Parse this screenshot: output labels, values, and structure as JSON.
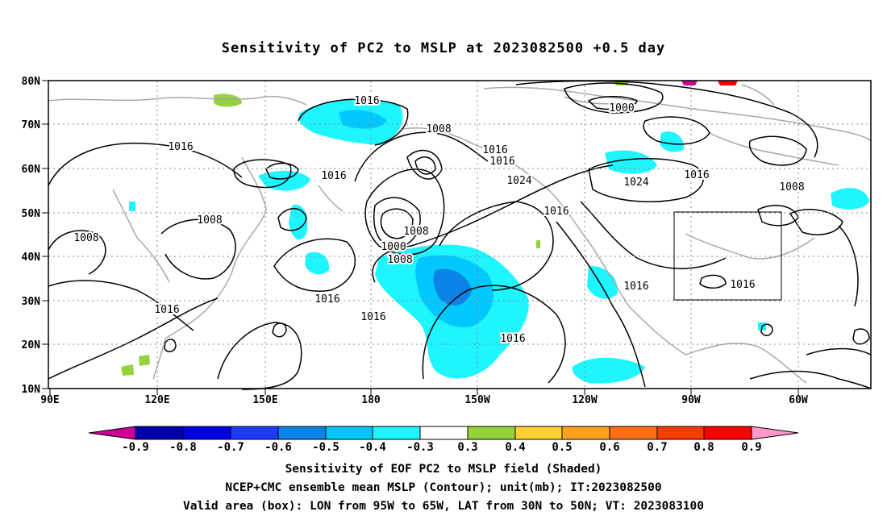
{
  "title": "Sensitivity of PC2 to MSLP at 2023082500 +0.5 day",
  "lat_labels": [
    "80N",
    "70N",
    "60N",
    "50N",
    "40N",
    "30N",
    "20N",
    "10N"
  ],
  "lon_labels": [
    "90E",
    "120E",
    "150E",
    "180",
    "150W",
    "120W",
    "90W",
    "60W"
  ],
  "contour_labels": [
    "1016",
    "1008",
    "1016",
    "1008",
    "1008",
    "1016",
    "1016",
    "1016",
    "1024",
    "1000",
    "1000",
    "1008",
    "1016",
    "1016",
    "1024",
    "1016",
    "1008",
    "1016",
    "1016",
    "1016",
    "1016",
    "1008",
    "1016"
  ],
  "colorbar": {
    "labels": [
      "-0.9",
      "-0.8",
      "-0.7",
      "-0.6",
      "-0.5",
      "-0.4",
      "-0.3",
      "0.3",
      "0.4",
      "0.5",
      "0.6",
      "0.7",
      "0.8",
      "0.9"
    ],
    "colors": [
      "#cc0099",
      "#0000a8",
      "#0000e0",
      "#1e3cff",
      "#0a82e6",
      "#00c8ff",
      "#1ef5ff",
      "#ffffff",
      "#96d23c",
      "#ffd232",
      "#ffa01e",
      "#ff6e14",
      "#ff3c00",
      "#ff0000",
      "#ff99cc"
    ]
  },
  "captions": [
    "Sensitivity of EOF PC2 to MSLP field (Shaded)",
    "NCEP+CMC ensemble mean MSLP (Contour); unit(mb); IT:2023082500",
    "Valid area (box): LON from 95W to 65W, LAT from 30N to 50N; VT: 2023083100"
  ]
}
